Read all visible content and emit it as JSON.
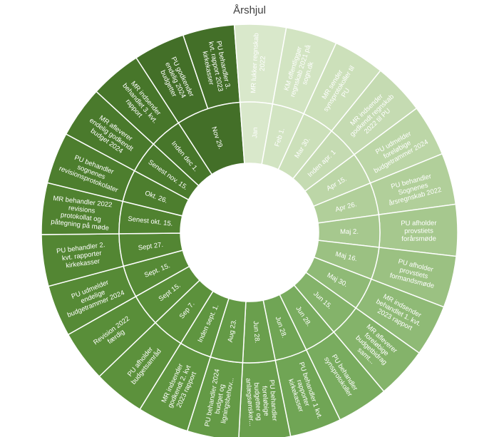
{
  "chart_data": {
    "type": "sunburst",
    "title": "Årshjul",
    "palette": {
      "dark": "#4a7a2c",
      "mid": "#5e9a3a",
      "light": "#c8ddb5",
      "border": "#ffffff"
    },
    "segments": [
      {
        "date": "Nov 29.",
        "event": "PU godkender endelig 2024 budgetter",
        "value": 1
      },
      {
        "date": "Nov 29.",
        "event": "PU behandler 3. kvt. rapport 2023 kirkekasser",
        "value": 1
      },
      {
        "date": "Jan",
        "event": "MR lukker regnskab 2022",
        "value": 1
      },
      {
        "date": "Feb 1.",
        "event": "KM offentliggør regnskab 2021 på sogn.dk",
        "value": 1
      },
      {
        "date": "Mar 30.",
        "event": "MR sender synsprotokoller til PU",
        "value": 1
      },
      {
        "date": "Inden apr. 1",
        "event": "MR indsender godkendt regnskab 2022 til PU",
        "value": 1
      },
      {
        "date": "Apr 15.",
        "event": "PU udmelder foreløbige budgetrammer 2024",
        "value": 1
      },
      {
        "date": "Apr 26.",
        "event": "PU behandler Sognenes årsregnskab 2022",
        "value": 1
      },
      {
        "date": "Maj 2.",
        "event": "PU afholder provstiets forårsmøde",
        "value": 1
      },
      {
        "date": "Maj 16.",
        "event": "PU afholder provstiets formandsmøde",
        "value": 1
      },
      {
        "date": "Maj 30.",
        "event": "MR indsender behandlet 1. kvt. 2023 rapport",
        "value": 1
      },
      {
        "date": "Jun 15.",
        "event": "MR afleverer foreløbige budgetbidrag samt...",
        "value": 1
      },
      {
        "date": "Jun 28.",
        "event": "PU behandler synsprotokoller",
        "value": 1
      },
      {
        "date": "Jun 28.",
        "event": "PU behandler 1 kvt. rapporter kirkekasser",
        "value": 1
      },
      {
        "date": "Jun 28.",
        "event": "PU behandler foreløbige budgetter og anlægsønsker...",
        "value": 1
      },
      {
        "date": "Aug 23.",
        "event": "PU behandler 2024 budget og ligningsbehov...",
        "value": 1
      },
      {
        "date": "Inden sept. 1.",
        "event": "MR indsender godkendt 2. kvt 2023 rapport",
        "value": 1
      },
      {
        "date": "Sep 7.",
        "event": "PU afholder budgetsamråd",
        "value": 1
      },
      {
        "date": "Sept 15.",
        "event": "Revision 2022 færdig",
        "value": 1
      },
      {
        "date": "Sept. 15.",
        "event": "PU udmelder endelige budgetrammer 2024",
        "value": 1
      },
      {
        "date": "Sept 27.",
        "event": "PU behandler 2. kvt. rapporter kirkekasser",
        "value": 1
      },
      {
        "date": "Senest okt. 15.",
        "event": "MR behandler 2022 revisions protokollat og påtegning på møde",
        "value": 1
      },
      {
        "date": "Okt. 26.",
        "event": "PU behandler sognenes revisionsprotokolater",
        "value": 1
      },
      {
        "date": "Senest nov. 15.",
        "event": "MR afleverer endelig godkendt budget 2024",
        "value": 1
      },
      {
        "date": "Inden dec 1.",
        "event": "MR indsender behandlet 3. kvt. rapport",
        "value": 1
      }
    ],
    "inner_groups": [
      {
        "label": "Nov 29.",
        "span": 2
      },
      {
        "label": "Jan",
        "span": 1
      },
      {
        "label": "Feb 1.",
        "span": 1
      },
      {
        "label": "Mar 30.",
        "span": 1
      },
      {
        "label": "Inden apr. 1",
        "span": 1
      },
      {
        "label": "Apr 15.",
        "span": 1
      },
      {
        "label": "Apr 26.",
        "span": 1
      },
      {
        "label": "Maj 2.",
        "span": 1
      },
      {
        "label": "Maj 16.",
        "span": 1
      },
      {
        "label": "Maj 30.",
        "span": 1
      },
      {
        "label": "Jun 15.",
        "span": 1
      },
      {
        "label": "Jun 28.",
        "span": 1
      },
      {
        "label": "Jun 28.",
        "span": 1
      },
      {
        "label": "Jun 28.",
        "span": 1
      },
      {
        "label": "Aug 23.",
        "span": 1
      },
      {
        "label": "Inden sept. 1.",
        "span": 1
      },
      {
        "label": "Sep 7.",
        "span": 1
      },
      {
        "label": "Sept 15.",
        "span": 1
      },
      {
        "label": "Sept. 15.",
        "span": 1
      },
      {
        "label": "Sept 27.",
        "span": 1
      },
      {
        "label": "Senest okt. 15.",
        "span": 1
      },
      {
        "label": "Okt. 26.",
        "span": 1
      },
      {
        "label": "Senest nov. 15.",
        "span": 1
      },
      {
        "label": "Inden dec 1.",
        "span": 1
      }
    ],
    "inner_colors": [
      "#436f28",
      "#d9e8cb",
      "#d2e4c2",
      "#cce0ba",
      "#c5dbb2",
      "#bcd6a7",
      "#b1cf9a",
      "#a6c88e",
      "#9bc182",
      "#8fba76",
      "#84b36a",
      "#79ac5f",
      "#70a555",
      "#6a9f4d",
      "#649a46",
      "#5f9540",
      "#5c913c",
      "#598e39",
      "#568a36",
      "#538633",
      "#508230",
      "#4d7e2e",
      "#4a7a2c",
      "#47762a"
    ],
    "outer_colors": [
      "#436f28",
      "#436f28",
      "#d9e8cb",
      "#d2e4c2",
      "#cce0ba",
      "#c5dbb2",
      "#bcd6a7",
      "#b1cf9a",
      "#a6c88e",
      "#9bc182",
      "#8fba76",
      "#84b36a",
      "#79ac5f",
      "#70a555",
      "#6a9f4d",
      "#649a46",
      "#5f9540",
      "#5c913c",
      "#598e39",
      "#568a36",
      "#538633",
      "#508230",
      "#4d7e2e",
      "#4a7a2c",
      "#47762a"
    ]
  }
}
